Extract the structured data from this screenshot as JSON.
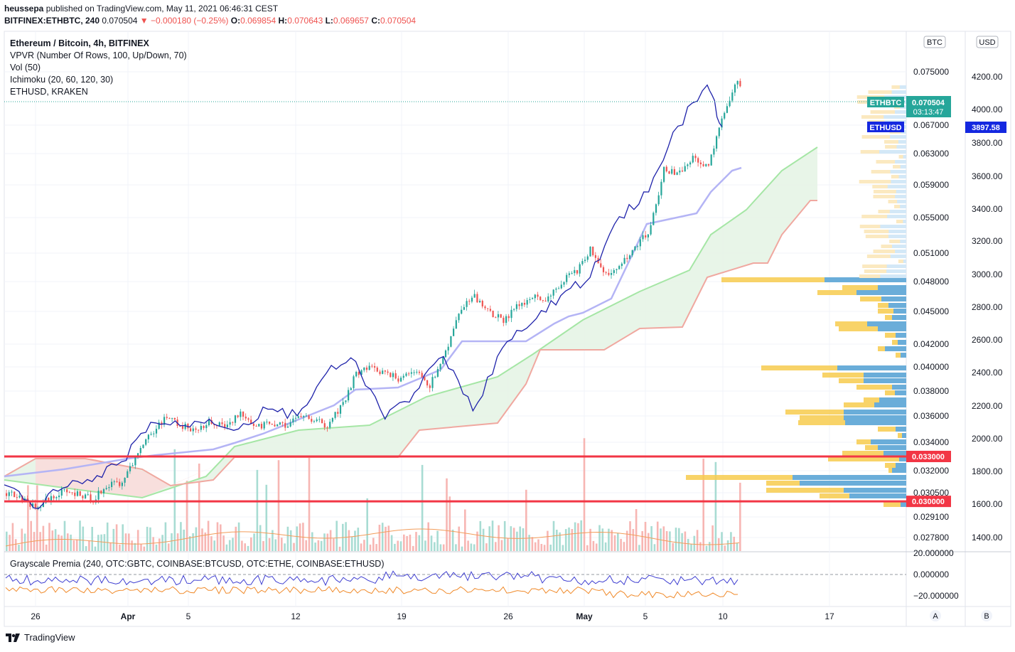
{
  "header": {
    "publisher": "heussepa",
    "published_text": "published on TradingView.com, May 11, 2021 06:46:31 CEST",
    "symbol": "BITFINEX:ETHBTC, 240",
    "last": "0.070504",
    "change": "−000180 (−0.25%)",
    "change_display": "−0.000180 (−0.25%)",
    "O_label": "O:",
    "O": "0.069854",
    "H_label": "H:",
    "H": "0.070643",
    "L_label": "L:",
    "L": "0.069657",
    "C_label": "C:",
    "C": "0.070504"
  },
  "legend": {
    "title": "Ethereum / Bitcoin, 4h, BITFINEX",
    "line1": "VPVR (Number Of Rows, 100, Up/Down, 70)",
    "line2": "Vol (50)",
    "line3": "Ichimoku (20, 60, 120, 30)",
    "line4": "ETHUSD, KRAKEN"
  },
  "pane2": {
    "label": "Grayscale Premia (240, OTC:GBTC, COINBASE:BTCUSD, OTC:ETHE, COINBASE:ETHUSD)"
  },
  "scales": {
    "btc_label": "BTC",
    "usd_label": "USD",
    "btc_ticks": [
      "0.075000",
      "0.067000",
      "0.063000",
      "0.059000",
      "0.055000",
      "0.051000",
      "0.048000",
      "0.045000",
      "0.042000",
      "0.040000",
      "0.038000",
      "0.036000",
      "0.034000",
      "0.032000",
      "0.030500",
      "0.029100",
      "0.027800"
    ],
    "usd_ticks": [
      "4200.00",
      "4000.00",
      "3800.00",
      "3600.00",
      "3400.00",
      "3200.00",
      "3000.00",
      "2800.00",
      "2600.00",
      "2400.00",
      "2200.00",
      "2000.00",
      "1800.00",
      "1600.00",
      "1400.00"
    ],
    "pane2_ticks": [
      "20.000000",
      "0.000000",
      "−20.000000"
    ],
    "axis_a": "A",
    "axis_b": "B"
  },
  "badges": {
    "ethbtc_label": "ETHBTC",
    "ethbtc_price": "0.070504",
    "countdown": "03:13:47",
    "ethusd_label": "ETHUSD",
    "ethusd_price": "3897.58",
    "level_upper": "0.033000",
    "level_lower": "0.030000"
  },
  "x_axis": [
    "26",
    "Apr",
    "5",
    "12",
    "19",
    "26",
    "May",
    "5",
    "10",
    "17"
  ],
  "footer": {
    "brand": "TradingView"
  },
  "colors": {
    "up": "#26a69a",
    "down": "#ef5350",
    "ethusd": "#1e22aa",
    "kijun": "#b4b4f5",
    "spanA": "#a5e6a5",
    "spanB": "#f0a8a0",
    "level": "#f23645",
    "vp_up": "#5aa8e6",
    "vp_down": "#f7cb4d",
    "badge_green": "#26a69a"
  },
  "chart_data": {
    "type": "candlestick",
    "title": "Ethereum / Bitcoin, 4h, BITFINEX",
    "y_range_btc": [
      0.027,
      0.077
    ],
    "y_range_usd": [
      1300,
      4300
    ],
    "date_range": [
      "2021-03-23",
      "2021-05-20"
    ],
    "ethbtc_path": [
      [
        "2021-03-23",
        0.0305
      ],
      [
        "2021-03-24",
        0.0302
      ],
      [
        "2021-03-25",
        0.0297
      ],
      [
        "2021-03-26",
        0.0301
      ],
      [
        "2021-03-27",
        0.0306
      ],
      [
        "2021-03-28",
        0.0304
      ],
      [
        "2021-03-29",
        0.0301
      ],
      [
        "2021-03-30",
        0.031
      ],
      [
        "2021-03-31",
        0.0312
      ],
      [
        "2021-04-01",
        0.033
      ],
      [
        "2021-04-02",
        0.0347
      ],
      [
        "2021-04-03",
        0.036
      ],
      [
        "2021-04-04",
        0.0352
      ],
      [
        "2021-04-05",
        0.035
      ],
      [
        "2021-04-06",
        0.0355
      ],
      [
        "2021-04-07",
        0.0352
      ],
      [
        "2021-04-08",
        0.0362
      ],
      [
        "2021-04-09",
        0.0351
      ],
      [
        "2021-04-10",
        0.0355
      ],
      [
        "2021-04-11",
        0.0353
      ],
      [
        "2021-04-12",
        0.0357
      ],
      [
        "2021-04-13",
        0.0358
      ],
      [
        "2021-04-14",
        0.0352
      ],
      [
        "2021-04-15",
        0.0368
      ],
      [
        "2021-04-16",
        0.0395
      ],
      [
        "2021-04-17",
        0.04
      ],
      [
        "2021-04-18",
        0.0395
      ],
      [
        "2021-04-19",
        0.039
      ],
      [
        "2021-04-20",
        0.0396
      ],
      [
        "2021-04-21",
        0.0385
      ],
      [
        "2021-04-22",
        0.041
      ],
      [
        "2021-04-23",
        0.045
      ],
      [
        "2021-04-24",
        0.0465
      ],
      [
        "2021-04-25",
        0.045
      ],
      [
        "2021-04-26",
        0.0442
      ],
      [
        "2021-04-27",
        0.0455
      ],
      [
        "2021-04-28",
        0.0465
      ],
      [
        "2021-04-29",
        0.0462
      ],
      [
        "2021-04-30",
        0.048
      ],
      [
        "2021-05-01",
        0.049
      ],
      [
        "2021-05-02",
        0.0515
      ],
      [
        "2021-05-03",
        0.0485
      ],
      [
        "2021-05-04",
        0.05
      ],
      [
        "2021-05-05",
        0.0515
      ],
      [
        "2021-05-06",
        0.0535
      ],
      [
        "2021-05-07",
        0.061
      ],
      [
        "2021-05-08",
        0.0605
      ],
      [
        "2021-05-09",
        0.0625
      ],
      [
        "2021-05-10",
        0.0615
      ],
      [
        "2021-05-11",
        0.068
      ],
      [
        "2021-05-12",
        0.074
      ],
      [
        "2021-05-13",
        0.0705
      ]
    ],
    "ethusd_path": [
      [
        "2021-03-23",
        1720
      ],
      [
        "2021-03-25",
        1580
      ],
      [
        "2021-03-27",
        1700
      ],
      [
        "2021-03-29",
        1740
      ],
      [
        "2021-03-31",
        1860
      ],
      [
        "2021-04-02",
        2100
      ],
      [
        "2021-04-04",
        2080
      ],
      [
        "2021-04-06",
        2120
      ],
      [
        "2021-04-08",
        2060
      ],
      [
        "2021-04-10",
        2180
      ],
      [
        "2021-04-12",
        2140
      ],
      [
        "2021-04-14",
        2400
      ],
      [
        "2021-04-16",
        2470
      ],
      [
        "2021-04-18",
        2120
      ],
      [
        "2021-04-20",
        2280
      ],
      [
        "2021-04-22",
        2500
      ],
      [
        "2021-04-24",
        2170
      ],
      [
        "2021-04-26",
        2550
      ],
      [
        "2021-04-28",
        2700
      ],
      [
        "2021-04-30",
        2870
      ],
      [
        "2021-05-02",
        2980
      ],
      [
        "2021-05-04",
        3350
      ],
      [
        "2021-05-06",
        3500
      ],
      [
        "2021-05-08",
        3900
      ],
      [
        "2021-05-10",
        4150
      ],
      [
        "2021-05-11",
        3897
      ]
    ],
    "levels": [
      0.033,
      0.03
    ],
    "series": [
      {
        "name": "ETHBTC"
      },
      {
        "name": "ETHUSD"
      },
      {
        "name": "VPVR (Number Of Rows, 100, Up/Down, 70)"
      },
      {
        "name": "Vol (50)"
      },
      {
        "name": "Ichimoku (20, 60, 120, 30)"
      },
      {
        "name": "Grayscale Premia"
      }
    ]
  }
}
